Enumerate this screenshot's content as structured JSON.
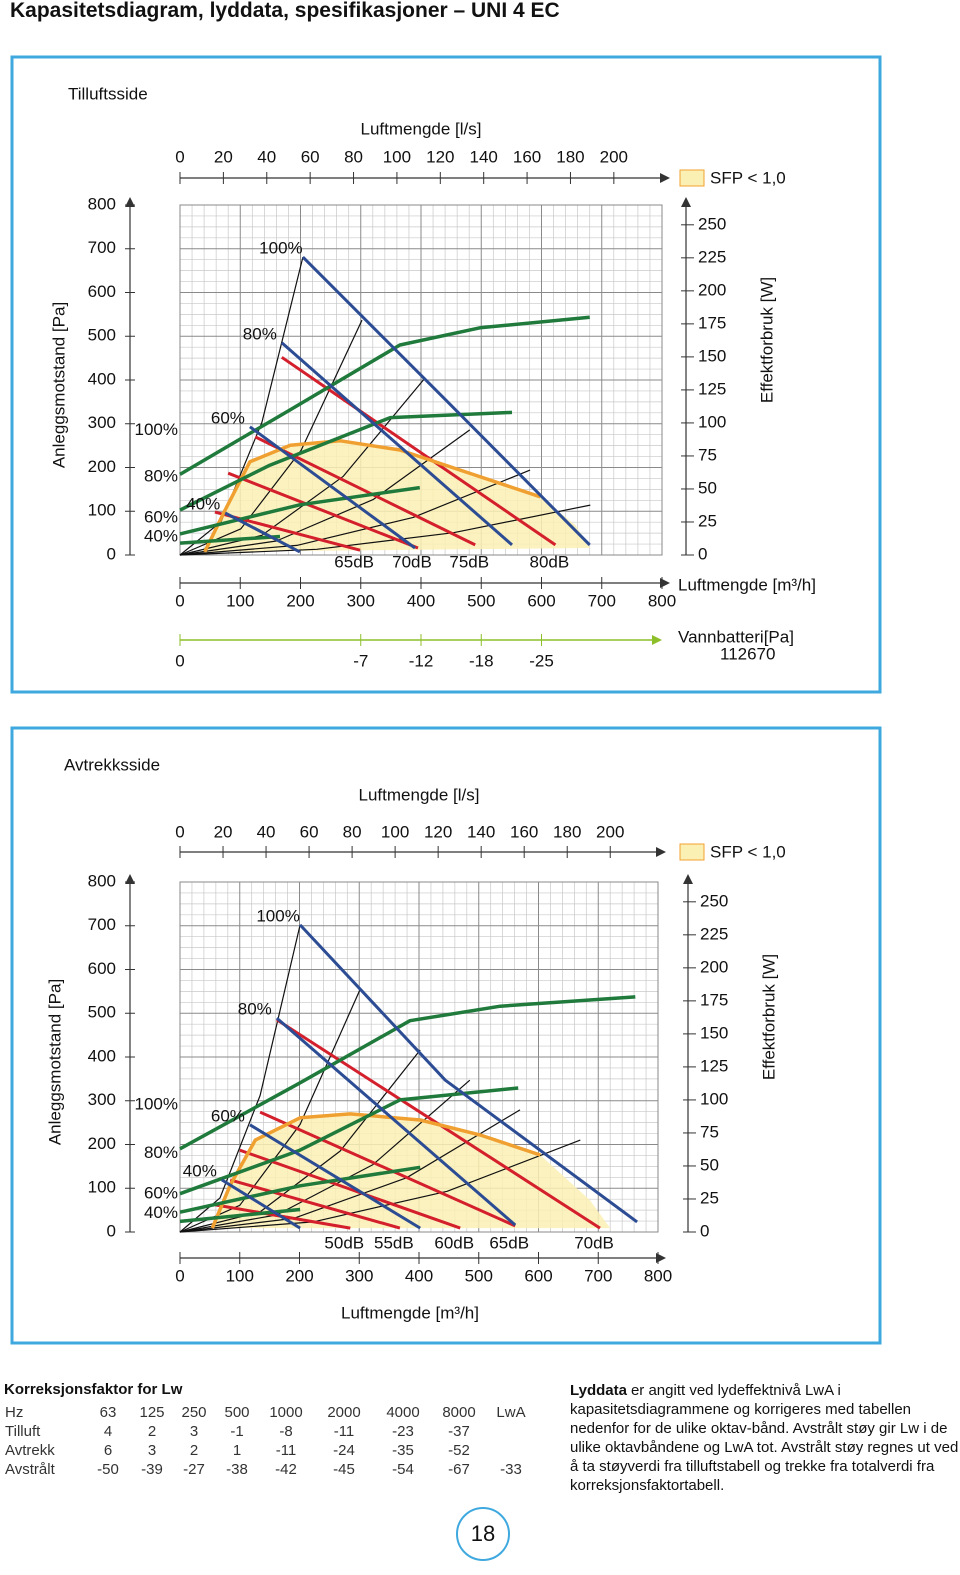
{
  "title": "Kapasitetsdiagram, lyddata, spesifikasjoner – UNI 4 EC",
  "chart_data": [
    {
      "type": "capacity",
      "title": "Tilluftsside",
      "x_label": "Luftmengde [m³/h]",
      "x2_label": "Luftmengde [l/s]",
      "y_label": "Anleggsmotstand [Pa]",
      "y2_label": "Effektforbruk [W]",
      "xlim": [
        0,
        800
      ],
      "xticks": [
        0,
        100,
        200,
        300,
        400,
        500,
        600,
        700,
        800
      ],
      "x2lim": [
        0,
        222.2
      ],
      "x2ticks": [
        0,
        20,
        40,
        60,
        80,
        100,
        120,
        140,
        160,
        180,
        200
      ],
      "ylim": [
        0,
        800
      ],
      "yticks": [
        0,
        100,
        200,
        300,
        400,
        500,
        600,
        700,
        800
      ],
      "y2lim": [
        0,
        265
      ],
      "y2ticks": [
        0,
        25,
        50,
        75,
        100,
        125,
        150,
        175,
        200,
        225,
        250
      ],
      "grid": true,
      "sfp": {
        "label": "SFP < 1,0",
        "color": "#fbf0b4",
        "line_color": "#f0a030",
        "x": [
          41,
          75,
          116,
          183,
          266,
          365,
          465,
          598
        ],
        "values": [
          7,
          103,
          213,
          251,
          261,
          240,
          194,
          133
        ],
        "area_close_x": [
          656,
          681
        ],
        "area_close_values": [
          69,
          16
        ]
      },
      "fan_curves": {
        "color": "#2c4c94",
        "series": [
          {
            "name": "100%",
            "x": [
              204,
              440,
              680
            ],
            "values": [
              681,
              356,
              23
            ]
          },
          {
            "name": "80%",
            "x": [
              169,
              551
            ],
            "values": [
              485,
              23
            ]
          },
          {
            "name": "60%",
            "x": [
              116,
              390
            ],
            "values": [
              293,
              16
            ]
          },
          {
            "name": "40%",
            "x": [
              75,
              199
            ],
            "values": [
              96,
              7
            ]
          }
        ]
      },
      "power_curves": {
        "color": "#1f7a3c",
        "axis": "y2",
        "series": [
          {
            "name": "100%",
            "x": [
              0,
              183,
              365,
              498,
              680
            ],
            "values": [
              61,
              110,
              159,
              172,
              180
            ]
          },
          {
            "name": "80%",
            "x": [
              0,
              149,
              349,
              551
            ],
            "values": [
              34,
              68,
              104,
              108
            ]
          },
          {
            "name": "60%",
            "x": [
              0,
              199,
              398
            ],
            "values": [
              16,
              38,
              51
            ]
          },
          {
            "name": "40%",
            "x": [
              0,
              166
            ],
            "values": [
              9,
              14
            ]
          }
        ]
      },
      "sound_lines": {
        "color": "#d41f2c",
        "series": [
          {
            "name": "65dB",
            "x": [
              58,
              299
            ],
            "values": [
              98,
              11
            ]
          },
          {
            "name": "70dB",
            "x": [
              80,
              395
            ],
            "values": [
              187,
              16
            ]
          },
          {
            "name": "75dB",
            "x": [
              125,
              490
            ],
            "values": [
              270,
              23
            ]
          },
          {
            "name": "80dB",
            "x": [
              169,
              623
            ],
            "values": [
              452,
              23
            ]
          }
        ]
      },
      "system_curves": {
        "color": "#111111",
        "series": [
          {
            "x": [
              0,
              68,
              136,
              204
            ],
            "values": [
              0,
              76,
              303,
              681
            ]
          },
          {
            "x": [
              0,
              101,
              201,
              302
            ],
            "values": [
              0,
              60,
              239,
              537
            ]
          },
          {
            "x": [
              0,
              136,
              271,
              407
            ],
            "values": [
              0,
              45,
              180,
              405
            ]
          },
          {
            "x": [
              0,
              160,
              321,
              481
            ],
            "values": [
              0,
              32,
              127,
              286
            ]
          },
          {
            "x": [
              0,
              194,
              387,
              581
            ],
            "values": [
              0,
              22,
              86,
              194
            ]
          },
          {
            "x": [
              0,
              227,
              454,
              681
            ],
            "values": [
              0,
              13,
              51,
              114
            ]
          }
        ]
      },
      "water_battery": {
        "label": "Vannbatteri[Pa]",
        "model": "112670",
        "color": "#8cbf2a",
        "ticks": [
          0,
          -7,
          -12,
          -18,
          -25
        ],
        "at_flow": [
          0,
          300,
          400,
          500,
          600
        ]
      }
    },
    {
      "type": "capacity",
      "title": "Avtrekksside",
      "x_label": "Luftmengde [m³/h]",
      "x2_label": "Luftmengde [l/s]",
      "y_label": "Anleggsmotstand [Pa]",
      "y2_label": "Effektforbruk [W]",
      "xlim": [
        0,
        800
      ],
      "xticks": [
        0,
        100,
        200,
        300,
        400,
        500,
        600,
        700,
        800
      ],
      "x2lim": [
        0,
        222.2
      ],
      "x2ticks": [
        0,
        20,
        40,
        60,
        80,
        100,
        120,
        140,
        160,
        180,
        200
      ],
      "ylim": [
        0,
        800
      ],
      "yticks": [
        0,
        100,
        200,
        300,
        400,
        500,
        600,
        700,
        800
      ],
      "y2lim": [
        0,
        265
      ],
      "y2ticks": [
        0,
        25,
        50,
        75,
        100,
        125,
        150,
        175,
        200,
        225,
        250
      ],
      "grid": true,
      "sfp": {
        "label": "SFP < 1,0",
        "color": "#fbf0b4",
        "line_color": "#f0a030",
        "x": [
          54,
          84,
          126,
          201,
          285,
          402,
          502,
          603
        ],
        "values": [
          9,
          107,
          210,
          261,
          270,
          256,
          222,
          176
        ],
        "area_close_x": [
          686,
          720
        ],
        "area_close_values": [
          73,
          9
        ]
      },
      "fan_curves": {
        "color": "#2c4c94",
        "series": [
          {
            "name": "100%",
            "x": [
              201,
              444,
              765
            ],
            "values": [
              702,
              347,
              23
            ]
          },
          {
            "name": "80%",
            "x": [
              162,
              561
            ],
            "values": [
              489,
              16
            ]
          },
          {
            "name": "60%",
            "x": [
              117,
              402
            ],
            "values": [
              245,
              9
            ]
          },
          {
            "name": "40%",
            "x": [
              70,
              201
            ],
            "values": [
              119,
              9
            ]
          }
        ]
      },
      "power_curves": {
        "color": "#1f7a3c",
        "axis": "y2",
        "series": [
          {
            "name": "100%",
            "x": [
              0,
              201,
              385,
              536,
              762
            ],
            "values": [
              63,
              113,
              160,
              171,
              178
            ]
          },
          {
            "name": "80%",
            "x": [
              0,
              201,
              368,
              566
            ],
            "values": [
              29,
              62,
              100,
              109
            ]
          },
          {
            "name": "60%",
            "x": [
              0,
              201,
              402
            ],
            "values": [
              15,
              35,
              49
            ]
          },
          {
            "name": "40%",
            "x": [
              0,
              201
            ],
            "values": [
              8,
              17
            ]
          }
        ]
      },
      "sound_lines": {
        "color": "#d41f2c",
        "series": [
          {
            "name": "50dB",
            "x": [
              59,
              285
            ],
            "values": [
              62,
              9
            ]
          },
          {
            "name": "55dB",
            "x": [
              84,
              368
            ],
            "values": [
              119,
              9
            ]
          },
          {
            "name": "60dB",
            "x": [
              100,
              469
            ],
            "values": [
              187,
              9
            ]
          },
          {
            "name": "65dB",
            "x": [
              134,
              561
            ],
            "values": [
              274,
              14
            ]
          },
          {
            "name": "70dB",
            "x": [
              162,
              703
            ],
            "values": [
              485,
              9
            ]
          }
        ]
      },
      "system_curves": {
        "color": "#111111",
        "series": [
          {
            "x": [
              0,
              67,
              134,
              201
            ],
            "values": [
              0,
              78,
              312,
              702
            ]
          },
          {
            "x": [
              0,
              100,
              201,
              301
            ],
            "values": [
              0,
              61,
              246,
              553
            ]
          },
          {
            "x": [
              0,
              134,
              268,
              402
            ],
            "values": [
              0,
              46,
              185,
              416
            ]
          },
          {
            "x": [
              0,
              162,
              323,
              485
            ],
            "values": [
              0,
              39,
              154,
              347
            ]
          },
          {
            "x": [
              0,
              190,
              379,
              569
            ],
            "values": [
              0,
              31,
              124,
              279
            ]
          },
          {
            "x": [
              0,
              223,
              447,
              670
            ],
            "values": [
              0,
              23,
              93,
              210
            ]
          }
        ]
      }
    }
  ],
  "correction_table": {
    "title": "Korreksjonsfaktor for Lw",
    "header": [
      "Hz",
      63,
      125,
      250,
      500,
      1000,
      2000,
      4000,
      8000,
      "LwA"
    ],
    "rows": [
      [
        "Tilluft",
        4,
        2,
        3,
        -1,
        -8,
        -11,
        -23,
        -37
      ],
      [
        "Avtrekk",
        6,
        3,
        2,
        1,
        -11,
        -24,
        -35,
        -52
      ],
      [
        "Avstrålt",
        -50,
        -39,
        -27,
        -38,
        -42,
        -45,
        -54,
        -67,
        -33
      ]
    ]
  },
  "note": {
    "bold": "Lyddata",
    "text": "er angitt ved lydeffektnivå LwA i kapasitetsdiagrammene og korrigeres med tabellen nedenfor for de ulike oktav-bånd. Avstrålt støy gir Lw i de ulike oktavbåndene og LwA tot. Avstrålt støy regnes ut ved å ta støyverdi fra tilluftstabell og trekke fra totalverdi fra korreksjonsfaktortabell."
  },
  "page_number": 18
}
